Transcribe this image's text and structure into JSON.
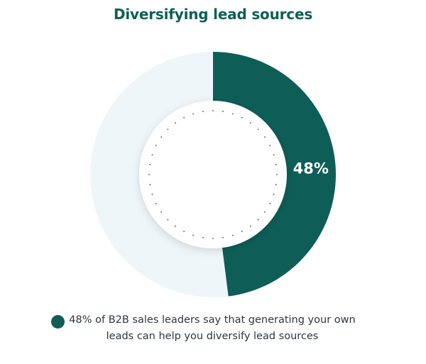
{
  "chart_data": {
    "type": "pie",
    "title": "Diversifying lead sources",
    "categories": [
      "48%"
    ],
    "values": [
      48
    ],
    "series": [
      {
        "name": "48% of B2B sales leaders say that generating your own leads can help you diversify lead sources",
        "value": 48,
        "color": "#0e5e57"
      }
    ],
    "total": 100,
    "remainder_color": "#eff6f9",
    "data_labels": [
      "48%"
    ],
    "legend": {
      "position": "bottom",
      "entries": [
        "48% of B2B sales leaders say that generating your own leads can help you diversify lead sources"
      ]
    }
  },
  "colors": {
    "title": "#0e5e57",
    "accent": "#0e5e57",
    "track": "#eff6f9",
    "text": "#2f3640"
  }
}
